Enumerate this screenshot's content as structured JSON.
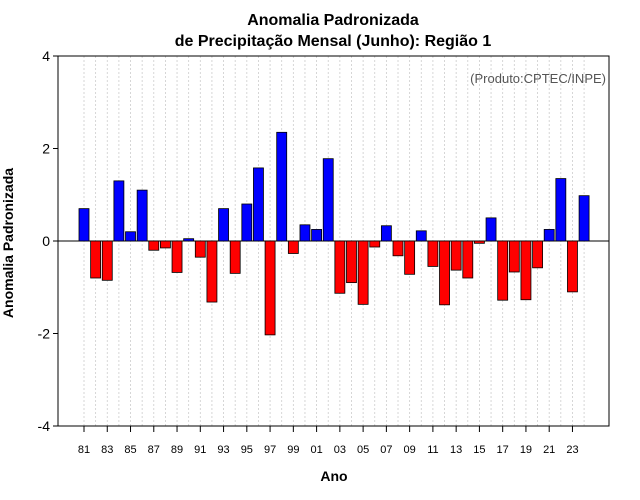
{
  "chart_data": {
    "type": "bar",
    "title": "Anomalia Padronizada",
    "subtitle": "de Precipitação Mensal (Junho): Região 1",
    "xlabel": "Ano",
    "ylabel": "Anomalia Padronizada",
    "credit": "(Produto:CPTEC/INPE)",
    "ylim": [
      -4,
      4
    ],
    "yticks": [
      -4,
      -2,
      0,
      2,
      4
    ],
    "categories": [
      "81",
      "82",
      "83",
      "84",
      "85",
      "86",
      "87",
      "88",
      "89",
      "90",
      "91",
      "92",
      "93",
      "94",
      "95",
      "96",
      "97",
      "98",
      "99",
      "00",
      "01",
      "02",
      "03",
      "04",
      "05",
      "06",
      "07",
      "08",
      "09",
      "10",
      "11",
      "12",
      "13",
      "14",
      "15",
      "16",
      "17",
      "18",
      "19",
      "20",
      "21",
      "22",
      "23",
      "24"
    ],
    "tick_labels": [
      "81",
      "83",
      "85",
      "87",
      "89",
      "91",
      "93",
      "95",
      "97",
      "99",
      "01",
      "03",
      "05",
      "07",
      "09",
      "11",
      "13",
      "15",
      "17",
      "19",
      "21",
      "23"
    ],
    "values": [
      0.7,
      -0.8,
      -0.85,
      1.3,
      0.2,
      1.1,
      -0.2,
      -0.15,
      -0.68,
      0.05,
      -0.35,
      -1.32,
      0.7,
      -0.7,
      0.8,
      1.58,
      -2.03,
      2.35,
      -0.27,
      0.35,
      0.25,
      1.78,
      -1.13,
      -0.9,
      -1.37,
      -0.13,
      0.33,
      -0.32,
      -0.72,
      0.22,
      -0.55,
      -1.38,
      -0.63,
      -0.8,
      -0.05,
      0.5,
      -1.28,
      -0.67,
      -1.27,
      -0.58,
      0.25,
      1.35,
      -1.1,
      0.98
    ],
    "positive_color": "#0000ff",
    "negative_color": "#ff0000",
    "grid": true
  }
}
